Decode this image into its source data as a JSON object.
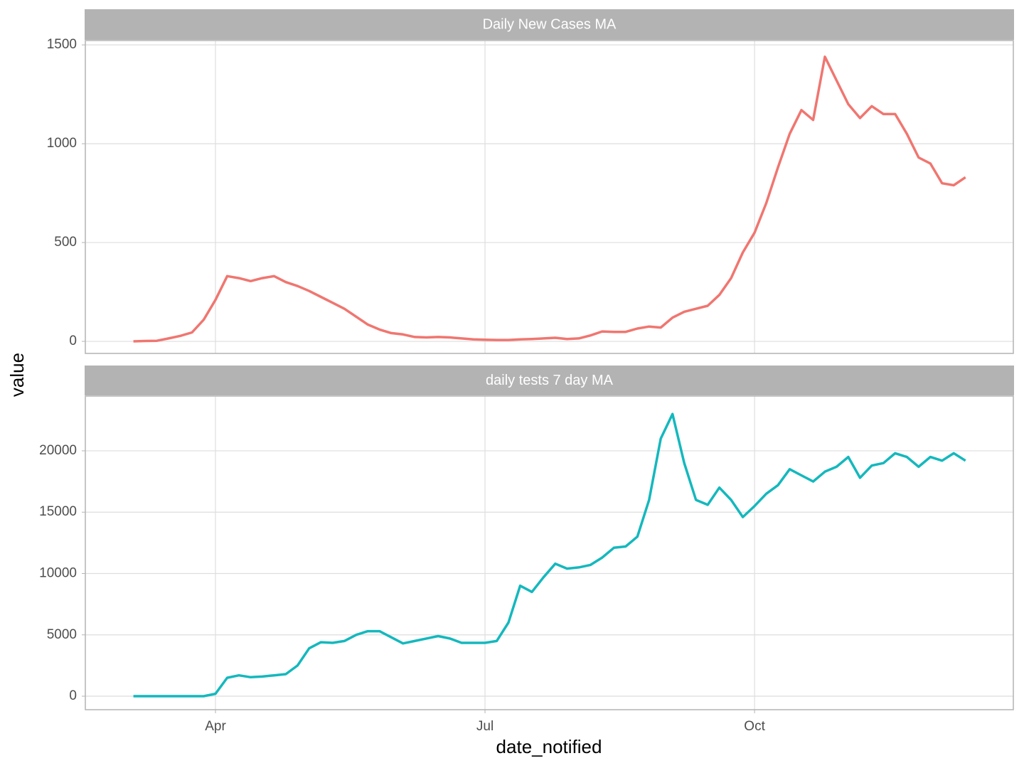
{
  "chart_data": {
    "type": "line",
    "xlabel": "date_notified",
    "ylabel": "value",
    "categories": [
      null,
      null,
      null,
      null,
      null,
      null,
      null,
      "Apr",
      null,
      null,
      null,
      null,
      null,
      null,
      null,
      null,
      null,
      null,
      null,
      null,
      null,
      null,
      null,
      null,
      null,
      null,
      null,
      null,
      null,
      null,
      "Jul",
      null,
      null,
      null,
      null,
      null,
      null,
      null,
      null,
      null,
      null,
      null,
      null,
      null,
      null,
      null,
      null,
      null,
      null,
      null,
      null,
      null,
      null,
      "Oct",
      null,
      null,
      null,
      null,
      null,
      null,
      null,
      null,
      null,
      null,
      null,
      null,
      null,
      null,
      null,
      null,
      null,
      null
    ],
    "grid": true,
    "panels": [
      {
        "title": "Daily New Cases MA",
        "color": "#f07670",
        "values": [
          0,
          2,
          3,
          15,
          28,
          45,
          110,
          210,
          330,
          320,
          305,
          320,
          330,
          300,
          280,
          255,
          225,
          195,
          165,
          125,
          85,
          60,
          42,
          35,
          22,
          20,
          22,
          20,
          15,
          10,
          8,
          7,
          7,
          10,
          12,
          15,
          18,
          12,
          15,
          30,
          50,
          48,
          48,
          65,
          75,
          70,
          120,
          150,
          165,
          180,
          235,
          320,
          450,
          550,
          700,
          880,
          1050,
          1170,
          1120,
          1440,
          1320,
          1200,
          1130,
          1190,
          1150,
          1150,
          1050,
          930,
          900,
          800,
          790,
          830
        ],
        "ylim": [
          -61,
          1522
        ],
        "yticks": [
          0,
          500,
          1000,
          1500
        ]
      },
      {
        "title": "daily tests 7 day MA",
        "color": "#14b8bd",
        "values": [
          0,
          0,
          0,
          0,
          0,
          0,
          0,
          200,
          1500,
          1700,
          1550,
          1600,
          1700,
          1800,
          2500,
          3900,
          4400,
          4350,
          4500,
          5000,
          5300,
          5300,
          4800,
          4300,
          4500,
          4700,
          4900,
          4700,
          4350,
          4350,
          4350,
          4500,
          6000,
          9000,
          8500,
          9700,
          10800,
          10400,
          10500,
          10700,
          11300,
          12100,
          12200,
          13000,
          16000,
          21000,
          23000,
          19000,
          16000,
          15600,
          17000,
          16000,
          14600,
          15500,
          16500,
          17200,
          18500,
          18000,
          17500,
          18300,
          18700,
          19500,
          17800,
          18800,
          19000,
          19800,
          19500,
          18700,
          19500,
          19200,
          19800,
          19200
        ],
        "ylim": [
          -1100,
          24460
        ],
        "yticks": [
          0,
          5000,
          10000,
          15000,
          20000
        ]
      }
    ]
  }
}
